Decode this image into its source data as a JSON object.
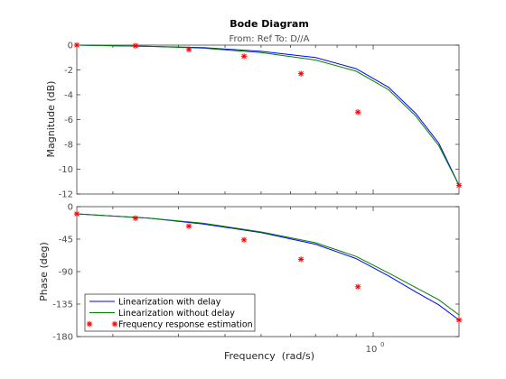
{
  "title": "Bode Diagram",
  "subtitle": "From: Ref  To: D//A",
  "colors": {
    "with_delay": "#0000ff",
    "without_delay": "#008000",
    "estimate": "#ff0000",
    "axes": "#262626",
    "tick_text": "#4d4d4d",
    "frame": "#262626"
  },
  "chart_data": [
    {
      "type": "line",
      "panel": "magnitude",
      "ylabel": "Magnitude (dB)",
      "xscale": "log",
      "xlim": [
        0.16,
        1.7
      ],
      "ylim": [
        -12,
        0
      ],
      "yticks": [
        0,
        -2,
        -4,
        -6,
        -8,
        -10,
        -12
      ],
      "grid": false,
      "series": [
        {
          "name": "Linearization with delay",
          "x": [
            0.16,
            0.25,
            0.35,
            0.5,
            0.7,
            0.9,
            1.1,
            1.3,
            1.5,
            1.7
          ],
          "values": [
            0,
            -0.1,
            -0.2,
            -0.5,
            -1.0,
            -1.9,
            -3.4,
            -5.5,
            -7.9,
            -11.3
          ]
        },
        {
          "name": "Linearization without delay",
          "x": [
            0.16,
            0.25,
            0.35,
            0.5,
            0.7,
            0.9,
            1.1,
            1.3,
            1.5,
            1.7
          ],
          "values": [
            0,
            -0.1,
            -0.25,
            -0.6,
            -1.2,
            -2.1,
            -3.6,
            -5.7,
            -8.1,
            -11.3
          ]
        },
        {
          "name": "Frequency response estimation",
          "marker": "star",
          "x": [
            0.16,
            0.23,
            0.32,
            0.45,
            0.64,
            0.91,
            1.7
          ],
          "values": [
            0,
            -0.05,
            -0.35,
            -0.9,
            -2.3,
            -5.4,
            -11.3
          ]
        }
      ]
    },
    {
      "type": "line",
      "panel": "phase",
      "ylabel": "Phase (deg)",
      "xlabel": "Frequency  (rad/s)",
      "xscale": "log",
      "xlim": [
        0.16,
        1.7
      ],
      "xticks": [
        1
      ],
      "xtick_labels": [
        "10"
      ],
      "xtick_exponent": "0",
      "ylim": [
        -180,
        0
      ],
      "yticks": [
        0,
        -45,
        -90,
        -135,
        -180
      ],
      "grid": false,
      "legend": "bottom-left",
      "series": [
        {
          "name": "Linearization with delay",
          "x": [
            0.16,
            0.25,
            0.35,
            0.5,
            0.7,
            0.9,
            1.1,
            1.3,
            1.5,
            1.7
          ],
          "values": [
            -10,
            -16,
            -24,
            -36,
            -52,
            -72,
            -96,
            -118,
            -136,
            -157
          ]
        },
        {
          "name": "Linearization without delay",
          "x": [
            0.16,
            0.25,
            0.35,
            0.5,
            0.7,
            0.9,
            1.1,
            1.3,
            1.5,
            1.7
          ],
          "values": [
            -10,
            -16,
            -23,
            -35,
            -50,
            -69,
            -92,
            -112,
            -129,
            -150
          ]
        },
        {
          "name": "Frequency response estimation",
          "marker": "star",
          "x": [
            0.16,
            0.23,
            0.32,
            0.45,
            0.64,
            0.91,
            1.7
          ],
          "values": [
            -10,
            -16,
            -27,
            -46,
            -73,
            -111,
            -157
          ]
        }
      ]
    }
  ]
}
